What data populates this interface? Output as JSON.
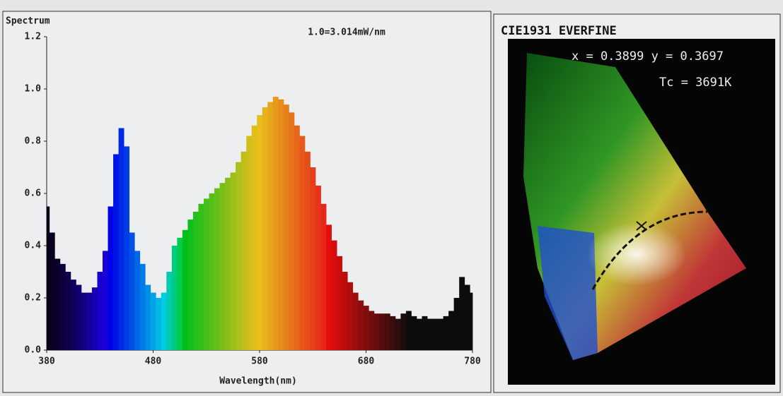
{
  "chart_data": {
    "type": "spectrum-bar",
    "title": "Spectrum",
    "annotation": "1.0=3.014mW/nm",
    "x_label": "Wavelength(nm)",
    "x": [
      380,
      385,
      390,
      395,
      400,
      405,
      410,
      415,
      420,
      425,
      430,
      435,
      440,
      445,
      450,
      455,
      460,
      465,
      470,
      475,
      480,
      485,
      490,
      495,
      500,
      505,
      510,
      515,
      520,
      525,
      530,
      535,
      540,
      545,
      550,
      555,
      560,
      565,
      570,
      575,
      580,
      585,
      590,
      595,
      600,
      605,
      610,
      615,
      620,
      625,
      630,
      635,
      640,
      645,
      650,
      655,
      660,
      665,
      670,
      675,
      680,
      685,
      690,
      695,
      700,
      705,
      710,
      715,
      720,
      725,
      730,
      735,
      740,
      745,
      750,
      755,
      760,
      765,
      770,
      775,
      780
    ],
    "values": [
      0.55,
      0.45,
      0.35,
      0.33,
      0.3,
      0.27,
      0.25,
      0.22,
      0.22,
      0.24,
      0.3,
      0.38,
      0.55,
      0.75,
      0.85,
      0.78,
      0.45,
      0.38,
      0.33,
      0.25,
      0.22,
      0.2,
      0.22,
      0.3,
      0.4,
      0.43,
      0.46,
      0.5,
      0.53,
      0.56,
      0.58,
      0.6,
      0.62,
      0.64,
      0.66,
      0.68,
      0.72,
      0.76,
      0.82,
      0.86,
      0.9,
      0.93,
      0.95,
      0.97,
      0.96,
      0.94,
      0.91,
      0.86,
      0.82,
      0.76,
      0.7,
      0.63,
      0.56,
      0.48,
      0.42,
      0.36,
      0.3,
      0.26,
      0.22,
      0.19,
      0.17,
      0.15,
      0.14,
      0.14,
      0.14,
      0.13,
      0.12,
      0.14,
      0.15,
      0.13,
      0.12,
      0.13,
      0.12,
      0.12,
      0.12,
      0.13,
      0.15,
      0.2,
      0.28,
      0.25,
      0.22
    ],
    "xlim": [
      380,
      780
    ],
    "xticks": [
      380,
      480,
      580,
      680,
      780
    ],
    "ylim": [
      0,
      1.2
    ],
    "yticks": [
      {
        "value": 0,
        "label": "0.0"
      },
      0.2,
      0.4,
      0.6,
      0.8,
      {
        "value": 1,
        "label": "1.0"
      },
      1.2
    ]
  },
  "cie_panel": {
    "title": "CIE1931 EVERFINE",
    "coordinates": "x = 0.3899 y = 0.3697",
    "tc": "Tc = 3691K"
  }
}
